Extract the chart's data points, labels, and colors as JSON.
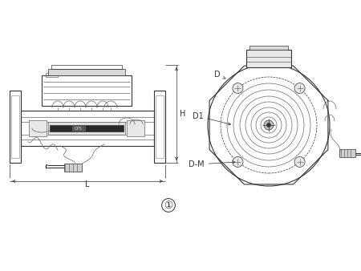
{
  "bg_color": "#ffffff",
  "line_color": "#333333",
  "light_gray": "#999999",
  "mid_gray": "#666666",
  "fig_width": 4.5,
  "fig_height": 3.38,
  "dpi": 100,
  "label_1": "①",
  "label_D": "D",
  "label_D1": "D1",
  "label_DM": "D-M",
  "label_H": "H",
  "label_L": "L"
}
